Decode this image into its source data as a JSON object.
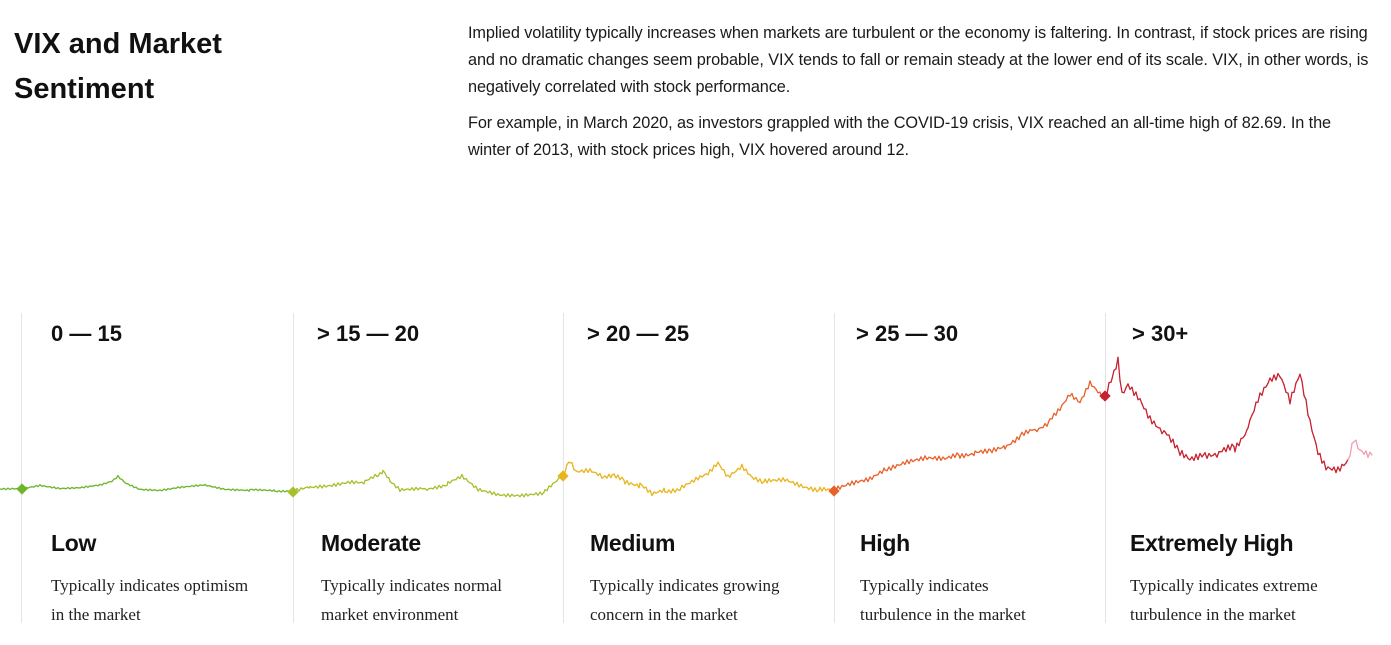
{
  "title": "VIX and Market Sentiment",
  "intro": {
    "paragraph_1": "Implied volatility typically increases when markets are turbulent or the economy is faltering. In contrast, if stock prices are rising and no dramatic changes seem probable, VIX tends to fall or remain steady at the lower end of its scale. VIX, in other words, is negatively correlated with stock performance.",
    "paragraph_2": "For example, in March 2020, as investors grappled with the COVID-19 crisis, VIX reached an all-time high of 82.69. In the winter of 2013, with stock prices high, VIX hovered around 12."
  },
  "levels": [
    {
      "range": "0 — 15",
      "label": "Low",
      "description": "Typically indicates optimism in the market",
      "color": "#6fb52c"
    },
    {
      "range": "> 15 — 20",
      "label": "Moderate",
      "description": "Typically indicates normal market environment",
      "color": "#a9bf2a"
    },
    {
      "range": "> 20 — 25",
      "label": "Medium",
      "description": "Typically indicates growing concern in the market",
      "color": "#e8b51c"
    },
    {
      "range": "> 25 — 30",
      "label": "High",
      "description": "Typically indicates turbulence in the market",
      "color": "#e8612a"
    },
    {
      "range": "> 30+",
      "label": "Extremely High",
      "description": "Typically indicates extreme turbulence in the market",
      "color": "#c8202f"
    }
  ],
  "tail_color": "#ef9fb2"
}
